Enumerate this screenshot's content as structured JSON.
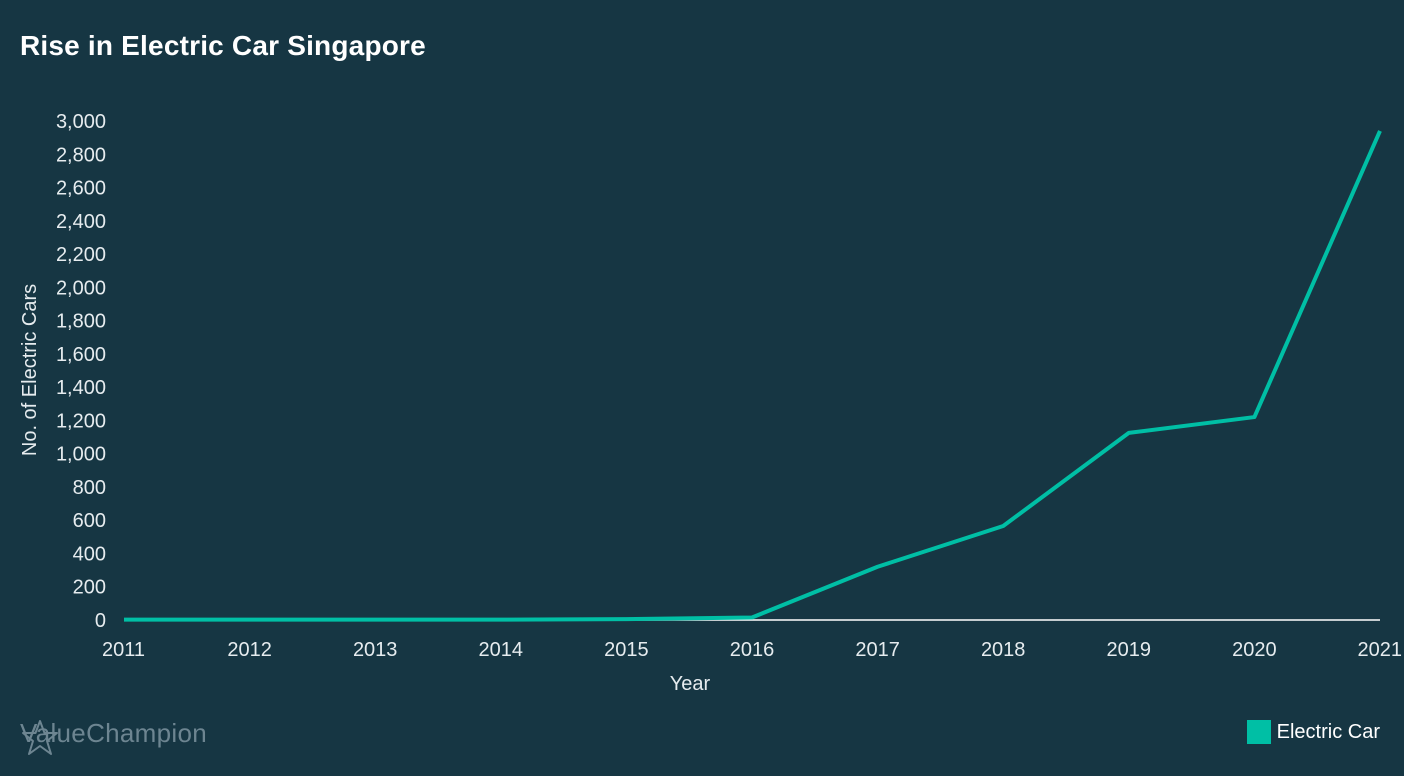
{
  "title": "Rise in Electric Car Singapore",
  "brand": "ValueChampion",
  "chart_data": {
    "type": "line",
    "title": "Rise in Electric Car Singapore",
    "xlabel": "Year",
    "ylabel": "No. of Electric Cars",
    "x": [
      "2011",
      "2012",
      "2013",
      "2014",
      "2015",
      "2016",
      "2017",
      "2018",
      "2019",
      "2020",
      "2021"
    ],
    "ylim": [
      0,
      3000
    ],
    "yticks": [
      0,
      200,
      400,
      600,
      800,
      1000,
      1200,
      1400,
      1600,
      1800,
      2000,
      2200,
      2400,
      2600,
      2800,
      3000
    ],
    "ytick_labels": [
      "0",
      "200",
      "400",
      "600",
      "800",
      "1,000",
      "1,200",
      "1,400",
      "1,600",
      "1,800",
      "2,000",
      "2,200",
      "2,400",
      "2,600",
      "2,800",
      "3,000"
    ],
    "grid": false,
    "legend": "bottom-right",
    "series": [
      {
        "name": "Electric Car",
        "color": "#00bfa5",
        "values": [
          2,
          2,
          2,
          2,
          5,
          15,
          320,
          565,
          1125,
          1220,
          2940
        ]
      }
    ]
  },
  "colors": {
    "background": "#163643",
    "text": "#e6ecef",
    "axis": "#ffffff",
    "brand": "#6d8591"
  }
}
